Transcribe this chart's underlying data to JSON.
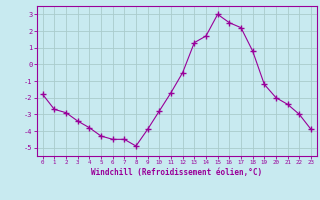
{
  "x": [
    0,
    1,
    2,
    3,
    4,
    5,
    6,
    7,
    8,
    9,
    10,
    11,
    12,
    13,
    14,
    15,
    16,
    17,
    18,
    19,
    20,
    21,
    22,
    23
  ],
  "y": [
    -1.8,
    -2.7,
    -2.9,
    -3.4,
    -3.8,
    -4.3,
    -4.5,
    -4.5,
    -4.9,
    -3.9,
    -2.8,
    -1.7,
    -0.5,
    1.3,
    1.7,
    3.0,
    2.5,
    2.2,
    0.8,
    -1.2,
    -2.0,
    -2.4,
    -3.0,
    -3.9
  ],
  "line_color": "#990099",
  "marker": "+",
  "marker_size": 4,
  "bg_color": "#c8eaf0",
  "grid_color": "#aacccc",
  "xlabel": "Windchill (Refroidissement éolien,°C)",
  "xlabel_color": "#990099",
  "tick_color": "#990099",
  "label_color": "#990099",
  "ylim": [
    -5.5,
    3.5
  ],
  "yticks": [
    -5,
    -4,
    -3,
    -2,
    -1,
    0,
    1,
    2,
    3
  ],
  "xlim": [
    -0.5,
    23.5
  ],
  "xticks": [
    0,
    1,
    2,
    3,
    4,
    5,
    6,
    7,
    8,
    9,
    10,
    11,
    12,
    13,
    14,
    15,
    16,
    17,
    18,
    19,
    20,
    21,
    22,
    23
  ]
}
